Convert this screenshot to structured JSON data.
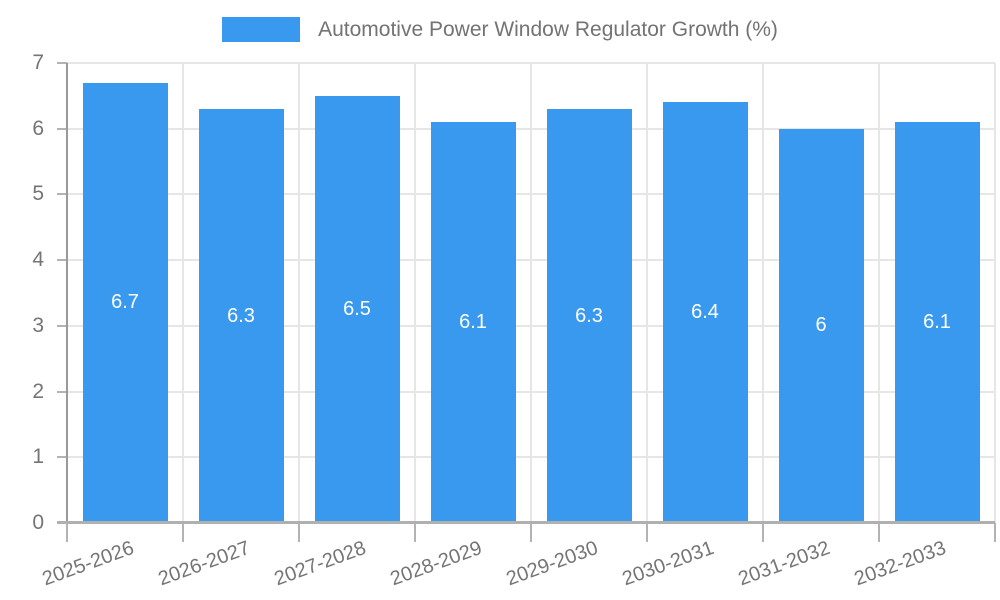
{
  "chart_data": {
    "type": "bar",
    "title": "Automotive Power Window Regulator Growth (%)",
    "categories": [
      "2025-2026",
      "2026-2027",
      "2027-2028",
      "2028-2029",
      "2029-2030",
      "2030-2031",
      "2031-2032",
      "2032-2033"
    ],
    "values": [
      6.7,
      6.3,
      6.5,
      6.1,
      6.3,
      6.4,
      6,
      6.1
    ],
    "value_labels": [
      "6.7",
      "6.3",
      "6.5",
      "6.1",
      "6.3",
      "6.4",
      "6",
      "6.1"
    ],
    "xlabel": "",
    "ylabel": "",
    "ylim": [
      0,
      7
    ],
    "yticks": [
      0,
      1,
      2,
      3,
      4,
      5,
      6,
      7
    ],
    "grid": true,
    "legend_position": "top",
    "bar_color": "#3999ee",
    "value_label_color": "#ffffff",
    "axis_label_color": "#757575",
    "title_color": "#737373"
  }
}
